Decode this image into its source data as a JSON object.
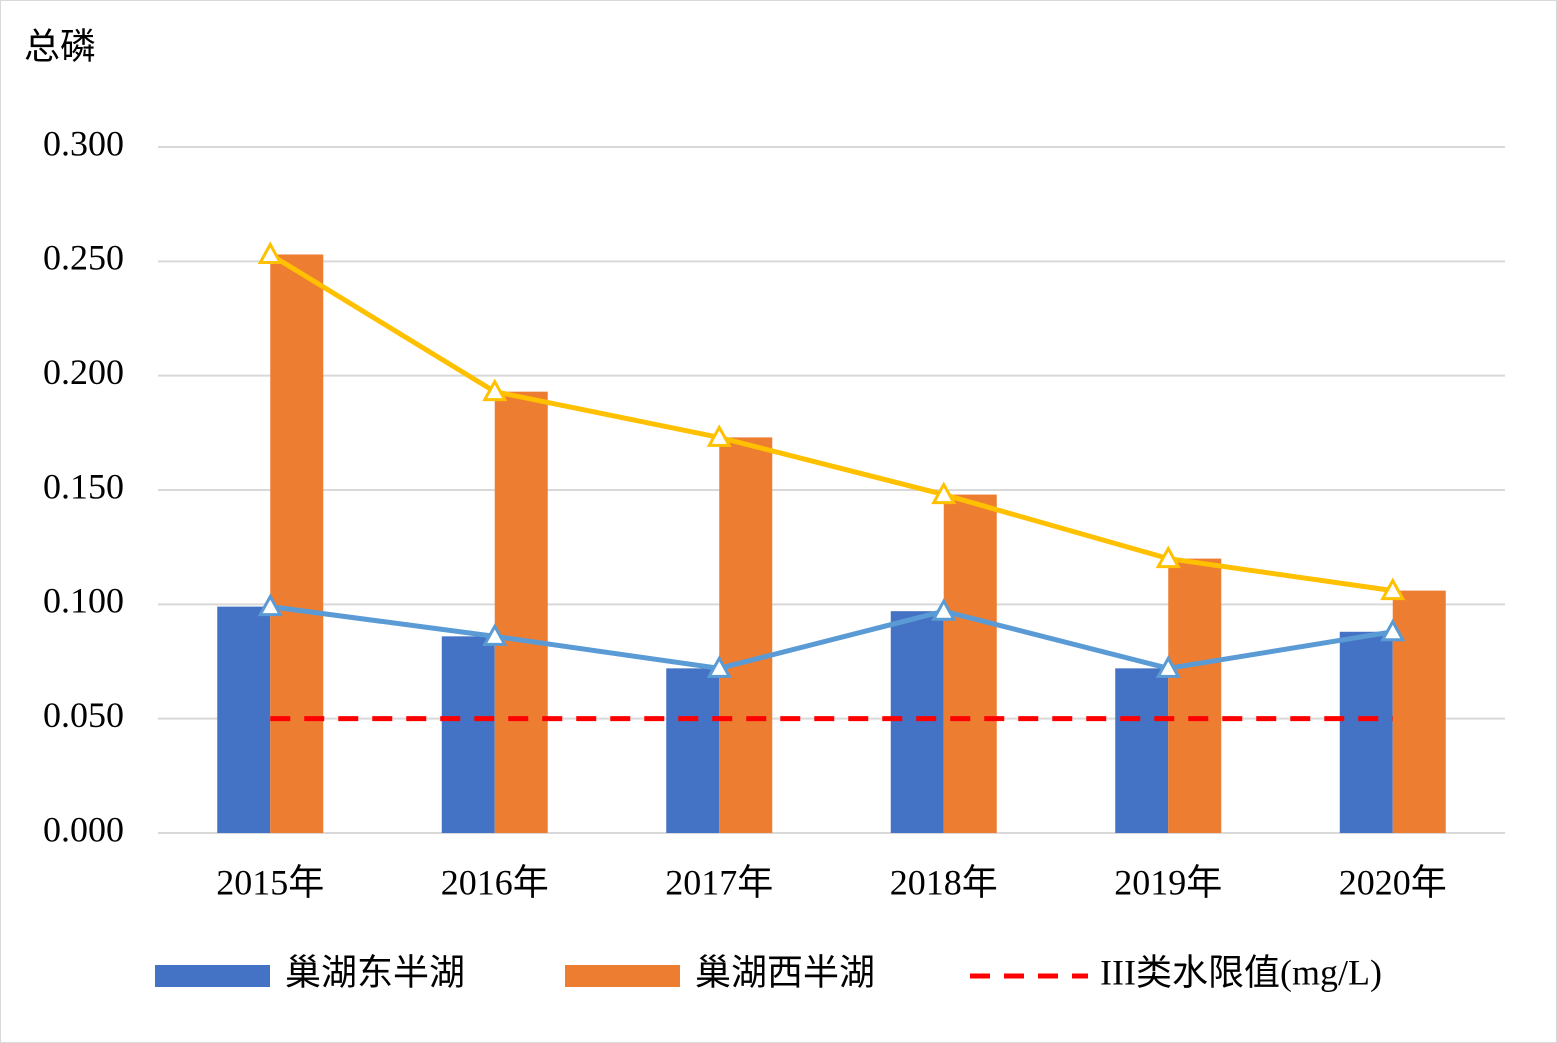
{
  "chart_data": {
    "type": "bar",
    "y_label": "总磷",
    "categories": [
      "2015年",
      "2016年",
      "2017年",
      "2018年",
      "2019年",
      "2020年"
    ],
    "series": [
      {
        "name": "巢湖东半湖",
        "color": "#4472c4",
        "kind": "bar",
        "line_color": "#5b9bd5",
        "marker": "triangle",
        "values": [
          0.099,
          0.086,
          0.072,
          0.097,
          0.072,
          0.088
        ]
      },
      {
        "name": "巢湖西半湖",
        "color": "#ed7d31",
        "kind": "bar",
        "line_color": "#ffc000",
        "marker": "triangle",
        "values": [
          0.253,
          0.193,
          0.173,
          0.148,
          0.12,
          0.106
        ]
      },
      {
        "name": "III类水限值(mg/L)",
        "color": "#ff0000",
        "kind": "dashed-line",
        "values": [
          0.05,
          0.05,
          0.05,
          0.05,
          0.05,
          0.05
        ]
      }
    ],
    "ylim": [
      0,
      0.3
    ],
    "yticks": [
      {
        "value": 0,
        "label": "0.000"
      },
      {
        "value": 0.05,
        "label": "0.050"
      },
      {
        "value": 0.1,
        "label": "0.100"
      },
      {
        "value": 0.15,
        "label": "0.150"
      },
      {
        "value": 0.2,
        "label": "0.200"
      },
      {
        "value": 0.25,
        "label": "0.250"
      },
      {
        "value": 0.3,
        "label": "0.300"
      }
    ],
    "grid": true
  }
}
